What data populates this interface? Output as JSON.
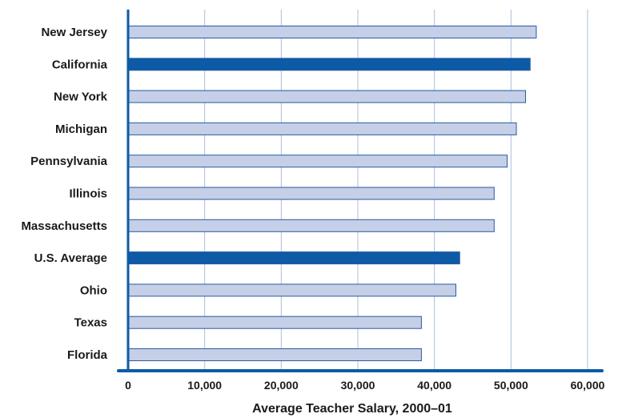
{
  "chart_data": {
    "type": "bar",
    "orientation": "horizontal",
    "categories": [
      "New Jersey",
      "California",
      "New York",
      "Michigan",
      "Pennsylvania",
      "Illinois",
      "Massachusetts",
      "U.S. Average",
      "Ohio",
      "Texas",
      "Florida"
    ],
    "values": [
      53300,
      52500,
      51900,
      50700,
      49500,
      47800,
      47800,
      43300,
      42800,
      38300,
      38300
    ],
    "highlighted": [
      "California",
      "U.S. Average"
    ],
    "xlabel": "Average Teacher Salary, 2000–01",
    "xlim": [
      0,
      60000
    ],
    "xticks": [
      0,
      10000,
      20000,
      30000,
      40000,
      50000,
      60000
    ],
    "xtick_labels": [
      "0",
      "10,000",
      "20,000",
      "30,000",
      "40,000",
      "50,000",
      "60,000"
    ],
    "grid": true,
    "colors": {
      "bar_fill": "#c5cfe8",
      "bar_stroke": "#2a5a9c",
      "highlight_fill": "#0d5aa7",
      "axis": "#0d5aa7",
      "grid": "#a9c0e0"
    }
  }
}
